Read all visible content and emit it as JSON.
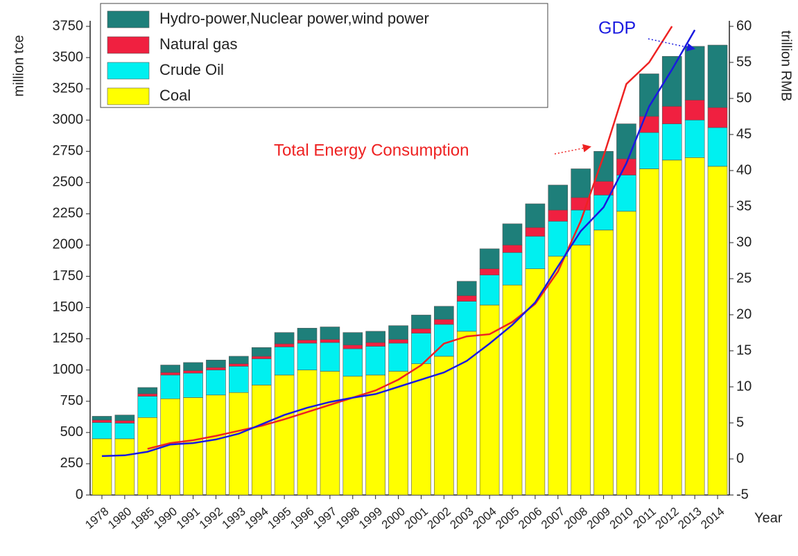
{
  "chart_data": {
    "type": "bar",
    "stacked": true,
    "y_label": "million tce",
    "y2_label": "trillion RMB",
    "x_label": "Year",
    "categories": [
      "1978",
      "1980",
      "1985",
      "1990",
      "1991",
      "1992",
      "1993",
      "1994",
      "1995",
      "1996",
      "1997",
      "1998",
      "1999",
      "2000",
      "2001",
      "2002",
      "2003",
      "2004",
      "2005",
      "2006",
      "2007",
      "2008",
      "2009",
      "2010",
      "2011",
      "2012",
      "2013",
      "2014"
    ],
    "series": [
      {
        "name": "Coal",
        "color": "#ffff00",
        "values": [
          450,
          450,
          620,
          770,
          780,
          800,
          820,
          880,
          960,
          1000,
          990,
          950,
          960,
          990,
          1050,
          1110,
          1310,
          1520,
          1680,
          1810,
          1910,
          2000,
          2120,
          2270,
          2610,
          2680,
          2700,
          2630
        ]
      },
      {
        "name": "Crude Oil",
        "color": "#00f0f0",
        "values": [
          130,
          125,
          170,
          190,
          195,
          200,
          210,
          210,
          225,
          215,
          230,
          220,
          230,
          225,
          245,
          255,
          240,
          240,
          260,
          260,
          280,
          280,
          280,
          290,
          290,
          290,
          300,
          310
        ]
      },
      {
        "name": "Natural gas",
        "color": "#f02040",
        "values": [
          20,
          20,
          20,
          20,
          20,
          20,
          20,
          20,
          25,
          25,
          25,
          30,
          30,
          30,
          35,
          40,
          45,
          50,
          60,
          70,
          90,
          100,
          110,
          130,
          130,
          140,
          160,
          160
        ]
      },
      {
        "name": "Hydro-power,Nuclear power,wind power",
        "color": "#1e7f7a",
        "values": [
          30,
          45,
          50,
          60,
          65,
          60,
          60,
          70,
          90,
          95,
          100,
          100,
          90,
          110,
          110,
          105,
          115,
          160,
          170,
          190,
          200,
          230,
          240,
          280,
          340,
          400,
          430,
          500
        ]
      },
      {
        "name": "Total Energy Consumption",
        "type": "line",
        "axis": "y2",
        "color": "#ee2222",
        "values": [
          null,
          null,
          1.4,
          2.2,
          2.6,
          3.2,
          3.9,
          4.6,
          5.5,
          6.5,
          7.5,
          8.5,
          9.5,
          11,
          13,
          16,
          17,
          17.3,
          19,
          21.5,
          26,
          33,
          42,
          52,
          55,
          60,
          null,
          null
        ]
      },
      {
        "name": "GDP",
        "type": "line",
        "axis": "y2",
        "color": "#1a1ae0",
        "values": [
          0.4,
          0.5,
          1,
          2,
          2.2,
          2.7,
          3.5,
          4.8,
          6.1,
          7.1,
          7.9,
          8.5,
          9,
          10,
          11,
          12,
          13.6,
          16,
          18.6,
          21.7,
          26.7,
          31.6,
          34.9,
          41,
          48.9,
          54,
          59.5,
          null
        ]
      }
    ],
    "ylim": [
      0,
      3750
    ],
    "yticks": [
      0,
      250,
      500,
      750,
      1000,
      1250,
      1500,
      1750,
      2000,
      2250,
      2500,
      2750,
      3000,
      3250,
      3500,
      3750
    ],
    "y2lim": [
      -5,
      60
    ],
    "y2ticks": [
      -5,
      0,
      5,
      10,
      15,
      20,
      25,
      30,
      35,
      40,
      45,
      50,
      55,
      60
    ],
    "legend": "top-left"
  }
}
